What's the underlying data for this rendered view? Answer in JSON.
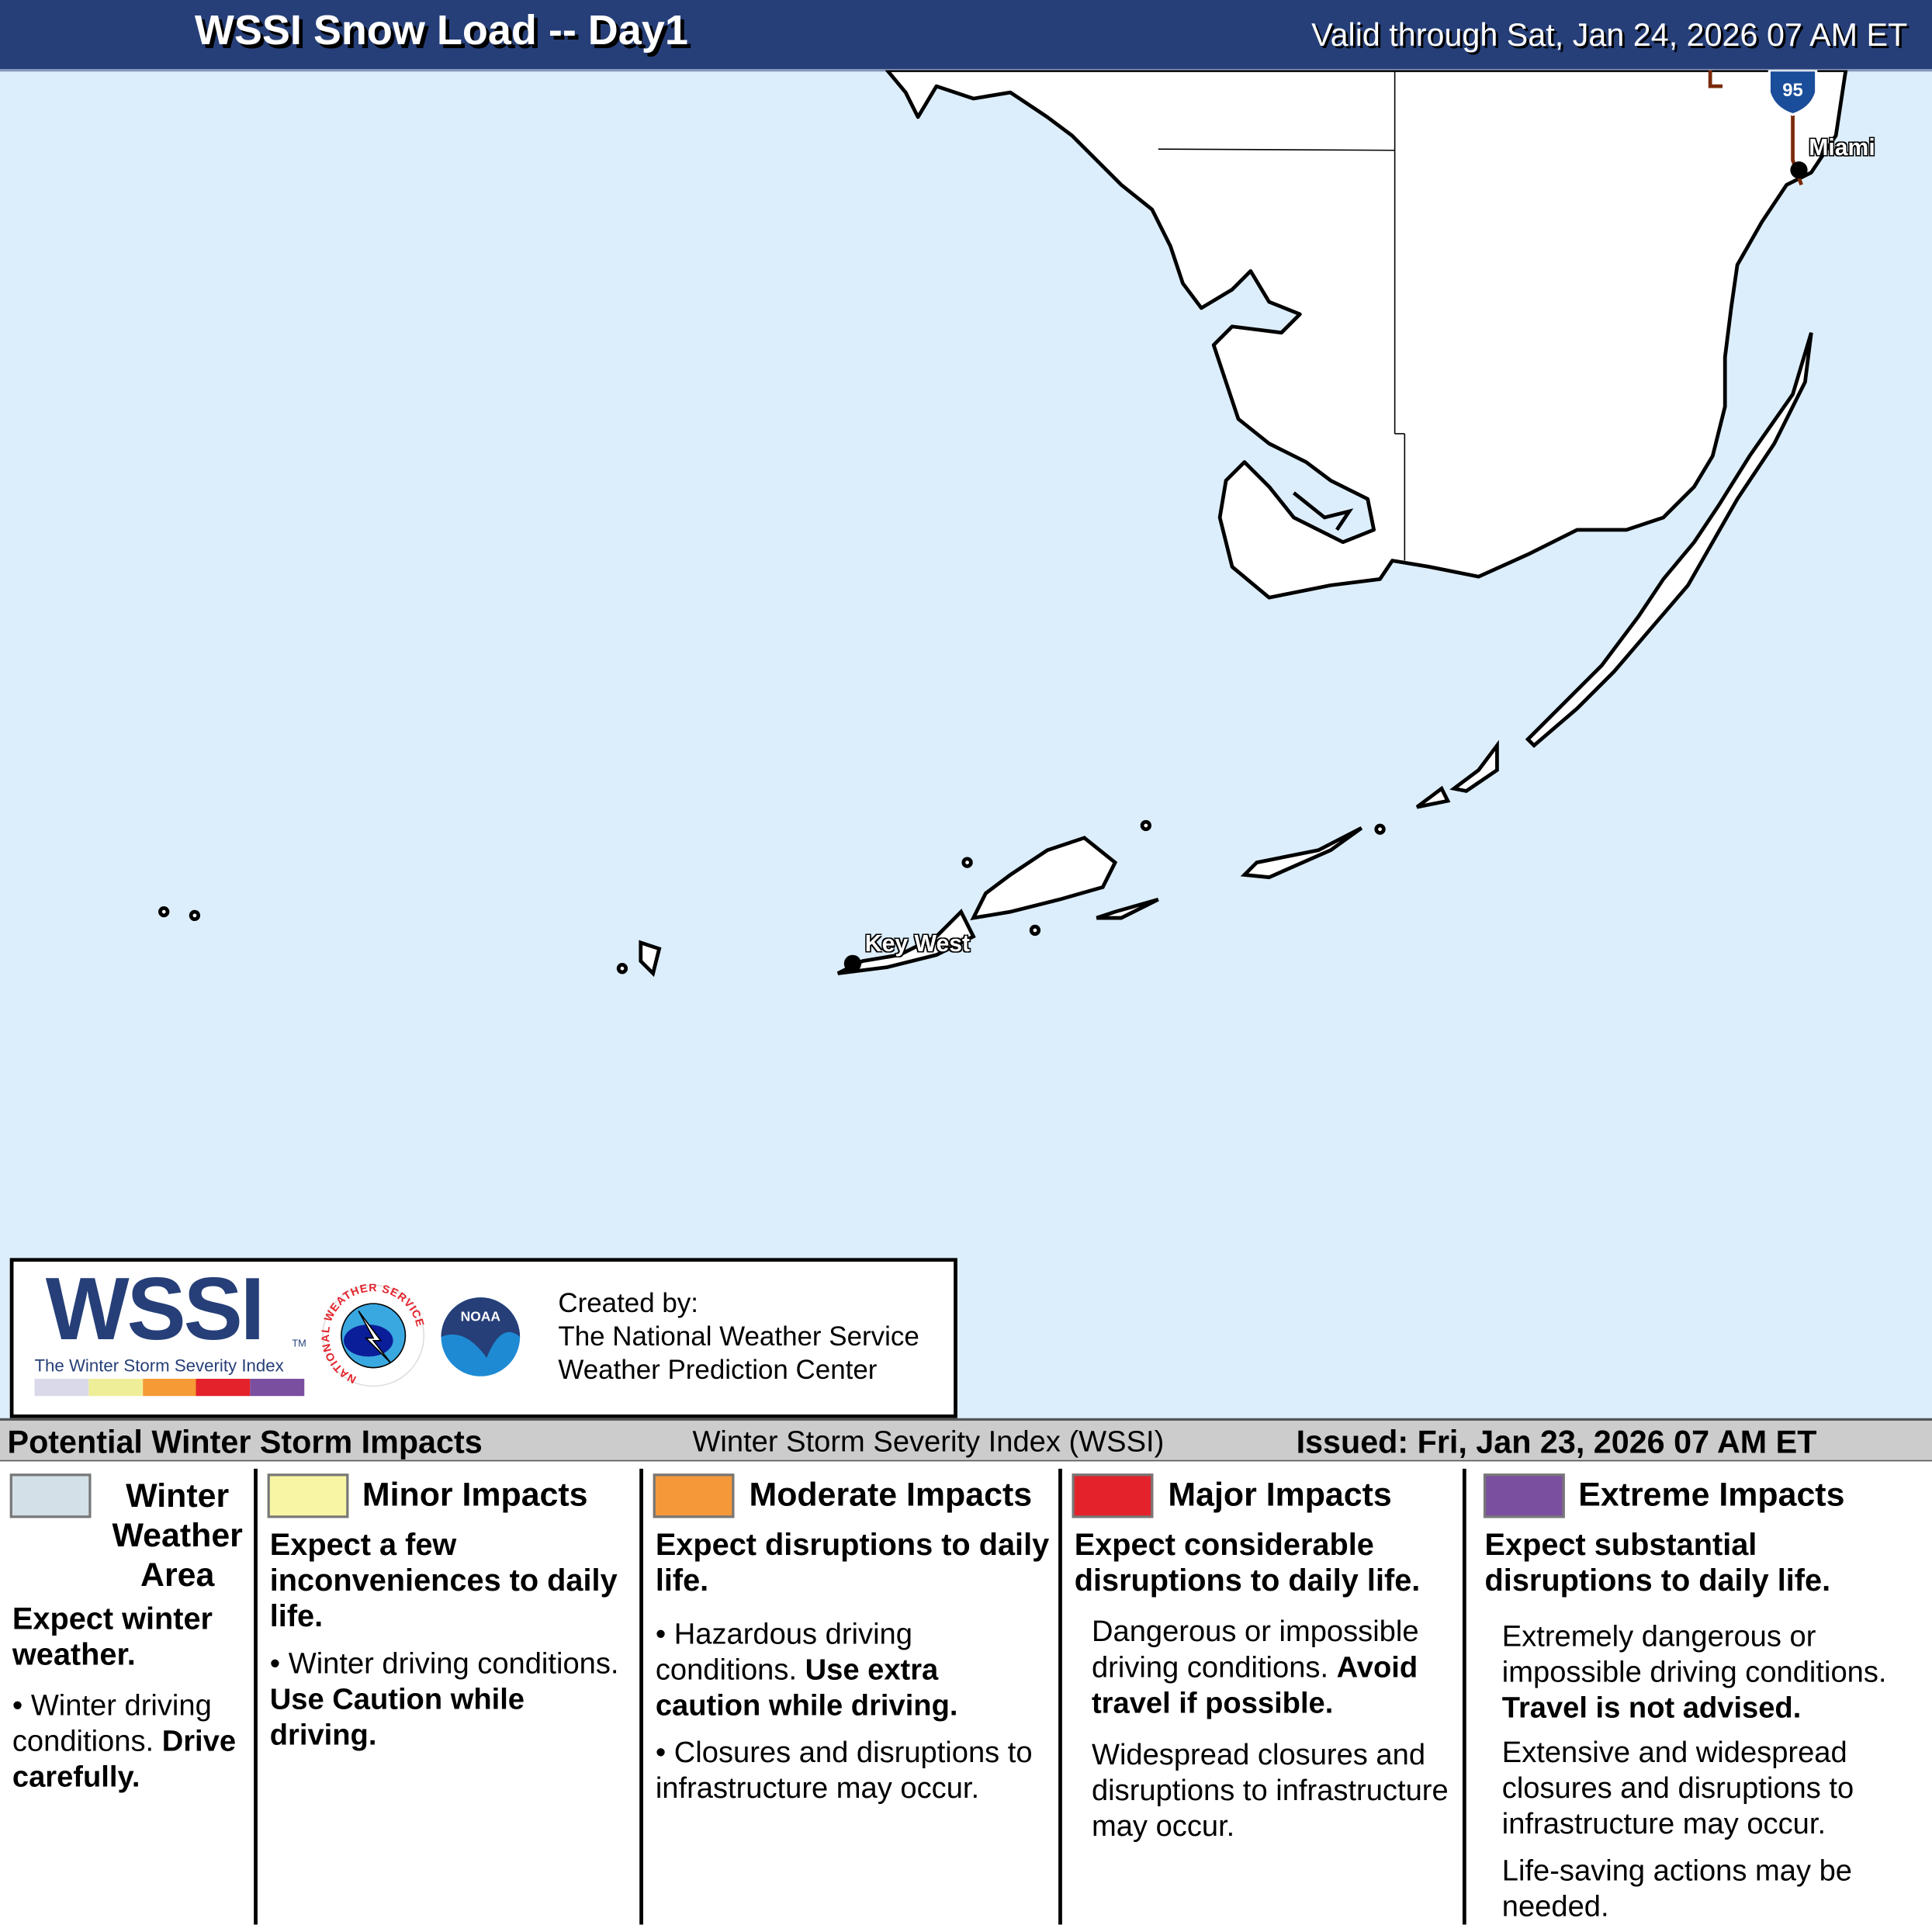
{
  "header": {
    "title": "WSSI Snow Load -- Day1",
    "valid": "Valid through Sat, Jan 24, 2026 07 AM ET"
  },
  "map": {
    "cities": [
      "Miami",
      "Key West"
    ],
    "highway_shield": "95",
    "water_color": "#dceefc",
    "land_color": "#ffffff"
  },
  "logo": {
    "wssi": "WSSI",
    "tm": "TM",
    "subtitle": "The Winter Storm Severity Index",
    "nws": "NATIONAL WEATHER SERVICE",
    "noaa": "NOAA",
    "created_by": "Created by:",
    "org1": "The National Weather Service",
    "org2": "Weather Prediction Center",
    "bar_colors": [
      "#d9d9ea",
      "#eeee99",
      "#f59a35",
      "#e4222b",
      "#7b4fa0"
    ]
  },
  "legend": {
    "title": "Potential Winter Storm Impacts",
    "center": "Winter Storm Severity Index (WSSI)",
    "issued": "Issued: Fri, Jan 23, 2026 07 AM ET",
    "columns": [
      {
        "label": "Winter Weather Area",
        "color": "#d3e0e8",
        "summary": "Expect winter weather.",
        "b1": "Winter driving conditions.",
        "b1_bold": "Drive carefully."
      },
      {
        "label": "Minor Impacts",
        "color": "#f8f6a4",
        "summary": "Expect a few inconveniences to daily life.",
        "b1": "Winter driving conditions.",
        "b1_bold": "Use Caution while driving."
      },
      {
        "label": "Moderate Impacts",
        "color": "#f5983a",
        "summary": "Expect disruptions to daily life.",
        "b1": "Hazardous driving conditions.",
        "b1_bold": "Use extra caution while driving.",
        "b2": "Closures and disruptions to infrastructure may occur."
      },
      {
        "label": "Major Impacts",
        "color": "#e4222b",
        "summary": "Expect considerable disruptions to daily life.",
        "b1": "Dangerous or impossible driving conditions.",
        "b1_bold": "Avoid travel if possible.",
        "b2": "Widespread closures and disruptions to infrastructure may occur."
      },
      {
        "label": "Extreme Impacts",
        "color": "#7b4fa0",
        "summary": "Expect substantial disruptions to daily life.",
        "b1": "Extremely dangerous or impossible driving conditions.",
        "b1_bold": "Travel is not advised.",
        "b2": "Extensive and widespread closures and disruptions to infrastructure may occur.",
        "b3": "Life-saving actions may be needed."
      }
    ]
  }
}
